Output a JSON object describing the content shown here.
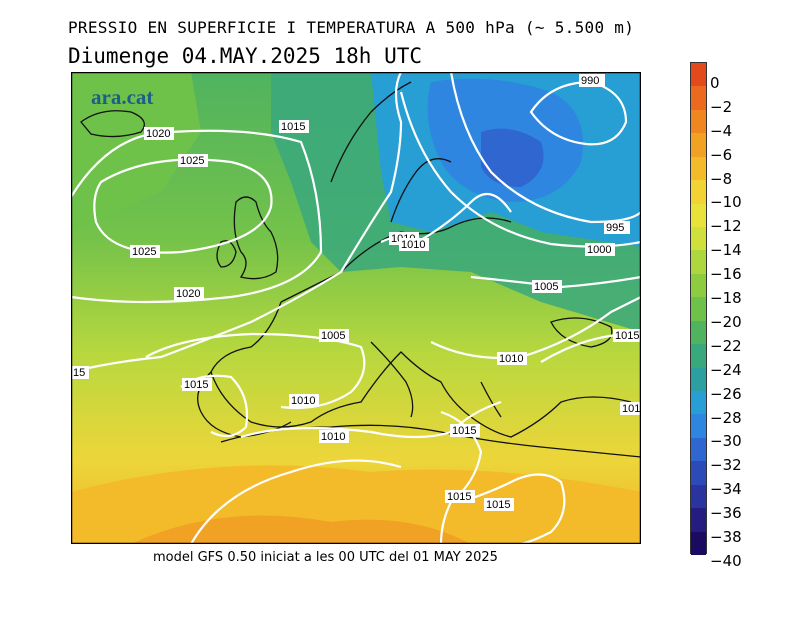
{
  "header": {
    "title": "PRESSIO EN SUPERFICIE I TEMPERATURA A 500 hPa (~ 5.500 m)",
    "subtitle": "Diumenge  04.MAY.2025  18h  UTC"
  },
  "footer": {
    "text": "model GFS 0.50 iniciat a les 00 UTC del 01 MAY 2025"
  },
  "map": {
    "logo": "ara.cat",
    "isobar_labels": [
      "990",
      "1020",
      "1015",
      "1025",
      "1025",
      "1020",
      "1010",
      "1010",
      "995",
      "1000",
      "1005",
      "1005",
      "1015",
      "15",
      "1015",
      "1010",
      "1010",
      "101",
      "1010",
      "1015",
      "1015",
      "1015"
    ]
  },
  "colorbar": {
    "labels": [
      "0",
      "−2",
      "−4",
      "−6",
      "−8",
      "−10",
      "−12",
      "−14",
      "−16",
      "−18",
      "−20",
      "−22",
      "−24",
      "−26",
      "−28",
      "−30",
      "−32",
      "−34",
      "−36",
      "−38",
      "−40"
    ],
    "colors": [
      "#e24a1c",
      "#ec6a1e",
      "#f0861f",
      "#f1a123",
      "#f3bb2a",
      "#f2d336",
      "#e9e23a",
      "#cfe03c",
      "#aed63e",
      "#8dcc40",
      "#6ec24a",
      "#4fb35f",
      "#39a87d",
      "#2c9fa1",
      "#279ed4",
      "#2e86e0",
      "#2f66cf",
      "#2d4bb8",
      "#2a349e",
      "#241c80",
      "#1a0a60"
    ]
  }
}
